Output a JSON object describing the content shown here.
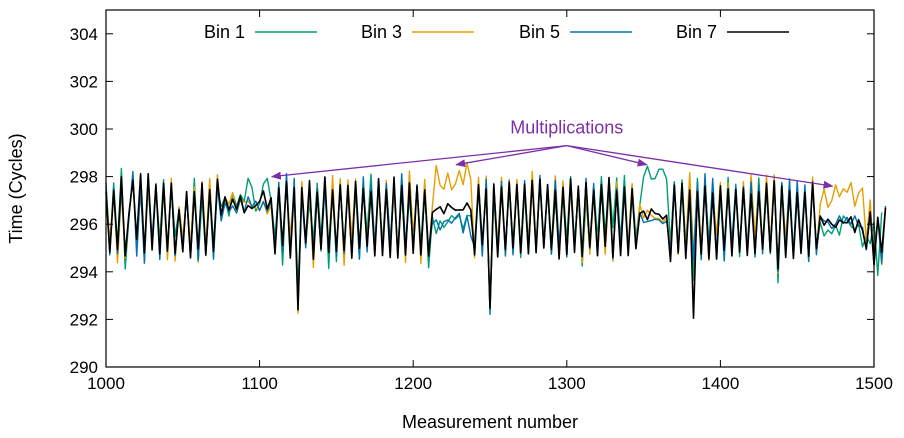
{
  "chart_data": {
    "type": "line",
    "xlabel": "Measurement number",
    "ylabel": "Time (Cycles)",
    "xlim": [
      1000,
      1500
    ],
    "ylim": [
      290,
      305
    ],
    "xticks": [
      1000,
      1100,
      1200,
      1300,
      1400,
      1500
    ],
    "yticks": [
      290,
      292,
      294,
      296,
      298,
      300,
      302,
      304
    ],
    "xtick_labels": [
      "1000",
      "1100",
      "1200",
      "1300",
      "1400",
      "1500"
    ],
    "ytick_labels": [
      "290",
      "292",
      "294",
      "296",
      "298",
      "300",
      "302",
      "304"
    ],
    "grid": false,
    "legend_position": "top",
    "annotation": {
      "text": "Multiplications",
      "color": "#7b2fa8",
      "targets": [
        {
          "x": 1108,
          "y": 298.0
        },
        {
          "x": 1228,
          "y": 298.5
        },
        {
          "x": 1352,
          "y": 298.5
        },
        {
          "x": 1473,
          "y": 297.6
        }
      ],
      "origin": {
        "x": 1300,
        "y": 299.3
      }
    },
    "series": [
      {
        "name": "Bin 1",
        "color": "#009e73",
        "high_segments": [
          [
            1338,
            1358
          ]
        ],
        "x_start": 1000,
        "x_step": 2.5,
        "values": [
          297.77,
          294.96,
          297.73,
          295.11,
          298.34,
          294.12,
          296.3,
          298.04,
          295.03,
          297.5,
          294.74,
          297.6,
          295.1,
          297.55,
          295.33,
          297.87,
          294.61,
          297.73,
          295.47,
          296.6,
          295.04,
          297.32,
          294.73,
          297.93,
          294.42,
          297.14,
          294.68,
          297.75,
          295.12,
          297.45,
          296.74,
          297.12,
          296.34,
          297.3,
          296.76,
          297.24,
          296.96,
          297.93,
          297.55,
          296.55,
          296.86,
          297.69,
          297.93,
          296.97,
          295.45,
          297.54,
          294.28,
          298.01,
          294.91,
          297.58,
          293.39,
          297.26,
          295.21,
          296.93,
          295.31,
          297.72,
          295.43,
          297.99,
          294.14,
          297.57,
          294.43,
          297.86,
          294.8,
          297.66,
          295.11,
          297.39,
          294.55,
          297.67,
          295.61,
          298.1,
          295.02,
          297.66,
          295.19,
          297.64,
          295.12,
          297.37,
          294.92,
          297.34,
          294.93,
          297.15,
          295.17,
          297.53,
          295.1,
          297.75,
          294.17,
          296.3,
          295.61,
          296.14,
          295.87,
          296.1,
          296.36,
          296.22,
          296.37,
          295.8,
          296.37,
          296.35,
          295.11,
          297.83,
          295.14,
          297.59,
          292.38,
          297.14,
          294.7,
          297.56,
          294.8,
          297.58,
          294.84,
          297.8,
          294.6,
          297.35,
          294.74,
          297.94,
          294.79,
          297.79,
          295.31,
          297.4,
          294.74,
          297.13,
          295.08,
          297.68,
          295.29,
          298.0,
          295.26,
          297.21,
          294.24,
          297.05,
          294.93,
          297.63,
          295.39,
          298.0,
          295.54,
          297.91,
          295.86,
          297.94,
          295.24,
          298.04,
          294.94,
          297.64,
          295.39,
          296.8,
          298.0,
          298.44,
          297.9,
          297.92,
          298.31,
          298.31,
          297.9,
          295.17,
          297.73,
          294.75,
          297.86,
          295.17,
          297.73,
          293.64,
          297.92,
          294.92,
          297.8,
          295.25,
          297.78,
          294.81,
          297.19,
          294.78,
          297.97,
          294.84,
          297.68,
          294.64,
          297.66,
          295.12,
          297.21,
          295.02,
          297.94,
          294.99,
          297.4,
          294.76,
          297.81,
          293.54,
          297.73,
          295.13,
          297.23,
          294.86,
          297.56,
          295.0,
          297.43,
          294.43,
          297.76,
          294.92,
          296.08,
          295.51,
          295.75,
          295.6,
          295.96,
          295.54,
          296.35,
          296.17,
          295.91,
          295.78,
          296.0,
          295.05,
          295.51,
          295.18,
          296.1,
          293.85,
          296.49
        ]
      },
      {
        "name": "Bin 3",
        "color": "#e69f00",
        "high_segments": [
          [
            1220,
            1240
          ],
          [
            1470,
            1492
          ]
        ],
        "x_start": 1000,
        "x_step": 2.5,
        "values": [
          297.48,
          295.21,
          297.41,
          294.38,
          297.31,
          294.59,
          296.48,
          297.89,
          294.98,
          297.92,
          294.35,
          297.69,
          295.14,
          297.71,
          294.91,
          297.48,
          294.51,
          297.92,
          294.45,
          296.73,
          295.4,
          297.23,
          295.09,
          297.56,
          294.4,
          297.8,
          295.06,
          297.92,
          294.62,
          298.08,
          296.16,
          297.13,
          296.84,
          297.33,
          296.47,
          297.04,
          296.92,
          296.98,
          296.73,
          296.68,
          296.61,
          296.96,
          296.43,
          296.79,
          294.94,
          297.64,
          295.09,
          297.63,
          295.47,
          297.51,
          292.26,
          297.79,
          295.06,
          297.4,
          294.18,
          297.56,
          294.88,
          297.64,
          294.89,
          298.04,
          294.71,
          297.92,
          294.27,
          297.86,
          295.38,
          297.9,
          294.99,
          297.74,
          295.16,
          297.6,
          294.68,
          297.58,
          295.02,
          297.84,
          295.04,
          297.45,
          294.59,
          297.67,
          294.4,
          298.24,
          295.55,
          297.51,
          294.34,
          297.88,
          294.73,
          296.76,
          298.47,
          297.64,
          297.47,
          298.15,
          297.44,
          297.69,
          298.25,
          297.66,
          298.58,
          297.86,
          294.59,
          297.96,
          294.78,
          298.02,
          292.48,
          297.55,
          295.16,
          297.97,
          294.73,
          297.88,
          295.11,
          297.88,
          294.98,
          297.42,
          295.3,
          298.22,
          295.16,
          297.76,
          295.01,
          297.51,
          295.09,
          298.03,
          294.97,
          297.82,
          294.72,
          297.5,
          295.04,
          297.4,
          294.39,
          297.48,
          294.74,
          297.32,
          294.93,
          297.55,
          294.74,
          297.51,
          294.44,
          297.77,
          294.96,
          297.32,
          295.1,
          297.7,
          295.02,
          296.83,
          296.26,
          296.59,
          296.38,
          296.25,
          296.24,
          296.09,
          296.27,
          295.05,
          297.71,
          294.73,
          297.66,
          294.99,
          298.16,
          294.77,
          297.65,
          295.02,
          297.6,
          294.47,
          297.31,
          295.53,
          297.75,
          294.79,
          297.73,
          294.8,
          297.45,
          294.88,
          297.79,
          294.86,
          298.06,
          295.45,
          297.62,
          294.89,
          298.06,
          295.12,
          298.07,
          293.94,
          297.58,
          295.38,
          297.69,
          294.64,
          297.67,
          295.27,
          297.47,
          294.65,
          297.98,
          294.81,
          296.83,
          297.48,
          296.71,
          296.99,
          297.65,
          297.15,
          297.49,
          297.34,
          297.75,
          296.75,
          297.31,
          297.52,
          295.28,
          297.02,
          294.25,
          296.28,
          294.3,
          296.59
        ]
      },
      {
        "name": "Bin 5",
        "color": "#0072b2",
        "high_segments": [],
        "x_start": 1000,
        "x_step": 2.5,
        "values": [
          297.63,
          294.71,
          297.52,
          294.76,
          297.59,
          294.79,
          296.31,
          298.22,
          294.66,
          297.59,
          294.37,
          298.04,
          295.34,
          297.7,
          294.51,
          297.65,
          294.87,
          297.69,
          294.68,
          296.58,
          295.1,
          297.25,
          294.57,
          297.37,
          294.48,
          297.45,
          294.84,
          297.35,
          294.53,
          297.61,
          296.14,
          296.89,
          296.52,
          296.77,
          296.47,
          297.08,
          296.51,
          297.15,
          296.74,
          296.97,
          296.57,
          296.94,
          296.55,
          296.97,
          295.08,
          297.76,
          294.83,
          298.12,
          294.58,
          297.92,
          292.67,
          297.31,
          295.01,
          297.62,
          294.92,
          297.52,
          294.88,
          297.48,
          294.82,
          297.34,
          294.65,
          297.64,
          294.76,
          297.49,
          294.64,
          297.79,
          294.53,
          297.99,
          294.83,
          297.65,
          295.06,
          297.91,
          294.86,
          297.71,
          295.28,
          297.77,
          294.69,
          298.12,
          295.09,
          297.37,
          295.06,
          297.66,
          294.78,
          297.35,
          295.01,
          296.02,
          296.18,
          295.76,
          296.11,
          296.18,
          296.04,
          296.27,
          296.46,
          295.63,
          296.33,
          295.51,
          295.04,
          297.52,
          294.66,
          297.89,
          292.21,
          297.72,
          294.89,
          297.79,
          294.66,
          297.82,
          294.71,
          297.68,
          294.78,
          297.83,
          294.95,
          297.84,
          294.93,
          298.05,
          294.99,
          297.63,
          294.75,
          297.85,
          295.05,
          297.36,
          294.62,
          297.92,
          295.06,
          297.51,
          294.71,
          297.93,
          294.97,
          297.71,
          294.67,
          297.58,
          295.06,
          297.71,
          294.54,
          297.5,
          295.3,
          297.46,
          294.98,
          297.25,
          295.03,
          296.49,
          296.07,
          296.11,
          296.15,
          296.21,
          296.18,
          296.02,
          296.13,
          294.96,
          297.78,
          294.86,
          297.68,
          294.73,
          297.35,
          294.51,
          297.75,
          294.51,
          298.12,
          294.72,
          297.92,
          294.53,
          297.37,
          294.46,
          297.51,
          295.27,
          297.59,
          294.99,
          297.58,
          294.85,
          297.77,
          294.62,
          297.67,
          294.76,
          297.66,
          294.92,
          297.84,
          294.02,
          297.75,
          294.85,
          297.9,
          294.69,
          297.8,
          295.05,
          297.65,
          294.47,
          297.74,
          294.72,
          296.33,
          296.14,
          296.09,
          295.82,
          296.01,
          296.35,
          296.03,
          296.29,
          296.0,
          296.35,
          295.92,
          295.87,
          294.92,
          296.45,
          294.45,
          296.26,
          294.35,
          296.77
        ]
      },
      {
        "name": "Bin 7",
        "color": "#000000",
        "high_segments": [],
        "x_start": 1000,
        "x_step": 2.5,
        "values": [
          297.37,
          294.81,
          297.42,
          294.94,
          297.99,
          294.67,
          296.47,
          297.85,
          295.36,
          298.12,
          294.8,
          298.12,
          294.92,
          297.65,
          294.75,
          297.73,
          294.87,
          297.73,
          294.77,
          296.62,
          294.84,
          297.37,
          294.6,
          297.36,
          294.97,
          297.73,
          294.7,
          297.45,
          294.86,
          297.89,
          296.39,
          297.15,
          296.6,
          297.05,
          296.62,
          297.18,
          296.48,
          296.78,
          296.66,
          296.78,
          296.96,
          297.4,
          296.65,
          297.11,
          294.75,
          297.52,
          295.11,
          297.8,
          294.58,
          297.53,
          292.4,
          297.54,
          295.21,
          297.83,
          294.53,
          297.35,
          294.96,
          297.98,
          294.82,
          297.44,
          294.86,
          297.65,
          294.9,
          297.63,
          294.57,
          297.79,
          294.99,
          297.5,
          295.07,
          297.38,
          294.67,
          297.91,
          294.68,
          297.45,
          294.6,
          297.98,
          294.58,
          297.62,
          294.71,
          297.74,
          294.78,
          297.61,
          294.71,
          297.44,
          294.66,
          296.49,
          296.62,
          296.73,
          296.44,
          296.86,
          296.7,
          296.59,
          296.6,
          296.6,
          296.89,
          296.6,
          294.71,
          297.67,
          295.14,
          297.48,
          292.48,
          297.67,
          294.62,
          297.56,
          294.93,
          297.76,
          295.01,
          297.66,
          294.8,
          297.69,
          294.77,
          297.84,
          294.81,
          297.89,
          295.01,
          297.67,
          294.94,
          297.43,
          294.54,
          297.55,
          294.73,
          297.9,
          294.81,
          297.6,
          294.64,
          297.75,
          295.04,
          297.43,
          294.68,
          297.67,
          295.07,
          297.96,
          294.61,
          297.4,
          294.68,
          297.56,
          294.68,
          297.49,
          294.97,
          296.45,
          296.55,
          296.19,
          296.64,
          296.45,
          296.42,
          296.22,
          296.38,
          294.43,
          297.64,
          294.8,
          297.72,
          294.56,
          297.43,
          292.05,
          297.37,
          294.74,
          297.6,
          294.54,
          297.31,
          294.54,
          297.61,
          294.91,
          297.48,
          294.67,
          297.45,
          294.83,
          297.51,
          294.69,
          297.26,
          294.77,
          297.37,
          294.95,
          297.72,
          294.83,
          297.82,
          294.12,
          297.61,
          294.6,
          297.41,
          294.56,
          297.32,
          294.77,
          297.34,
          294.65,
          297.77,
          294.97,
          296.34,
          295.96,
          296.21,
          296.0,
          295.87,
          296.18,
          296.07,
          296.06,
          296.31,
          295.65,
          296.19,
          295.74,
          294.96,
          296.52,
          294.3,
          296.29,
          294.82,
          296.69
        ]
      }
    ]
  }
}
